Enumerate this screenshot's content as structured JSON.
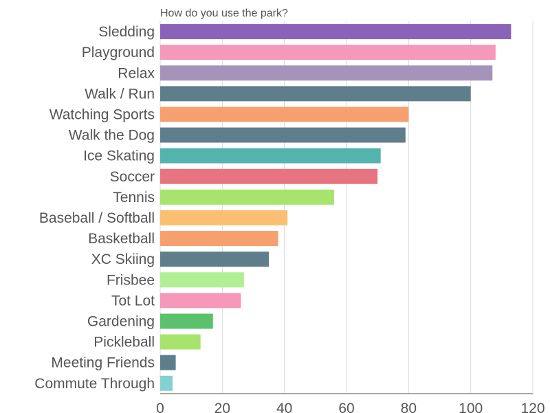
{
  "chart_data": {
    "type": "bar",
    "orientation": "horizontal",
    "title": "How do you use the park?",
    "xlabel": "",
    "ylabel": "",
    "xlim": [
      0,
      120
    ],
    "xticks": [
      0,
      20,
      40,
      60,
      80,
      100,
      120
    ],
    "grid": true,
    "categories": [
      "Sledding",
      "Playground",
      "Relax",
      "Walk / Run",
      "Watching Sports",
      "Walk the Dog",
      "Ice Skating",
      "Soccer",
      "Tennis",
      "Baseball / Softball",
      "Basketball",
      "XC Skiing",
      "Frisbee",
      "Tot Lot",
      "Gardening",
      "Pickleball",
      "Meeting Friends",
      "Commute Through"
    ],
    "values": [
      113,
      108,
      107,
      100,
      80,
      79,
      71,
      70,
      56,
      41,
      38,
      35,
      27,
      26,
      17,
      13,
      5,
      4
    ],
    "colors": [
      "#8a63b9",
      "#f598b9",
      "#a693b9",
      "#5f7e8c",
      "#f5a06e",
      "#5f7e8c",
      "#55b3ae",
      "#e87481",
      "#a6e46d",
      "#fbbf73",
      "#f5a06e",
      "#5f7e8c",
      "#b1ef94",
      "#f598b9",
      "#5ac16c",
      "#a6e46d",
      "#5f7e8c",
      "#84d1d4"
    ]
  }
}
